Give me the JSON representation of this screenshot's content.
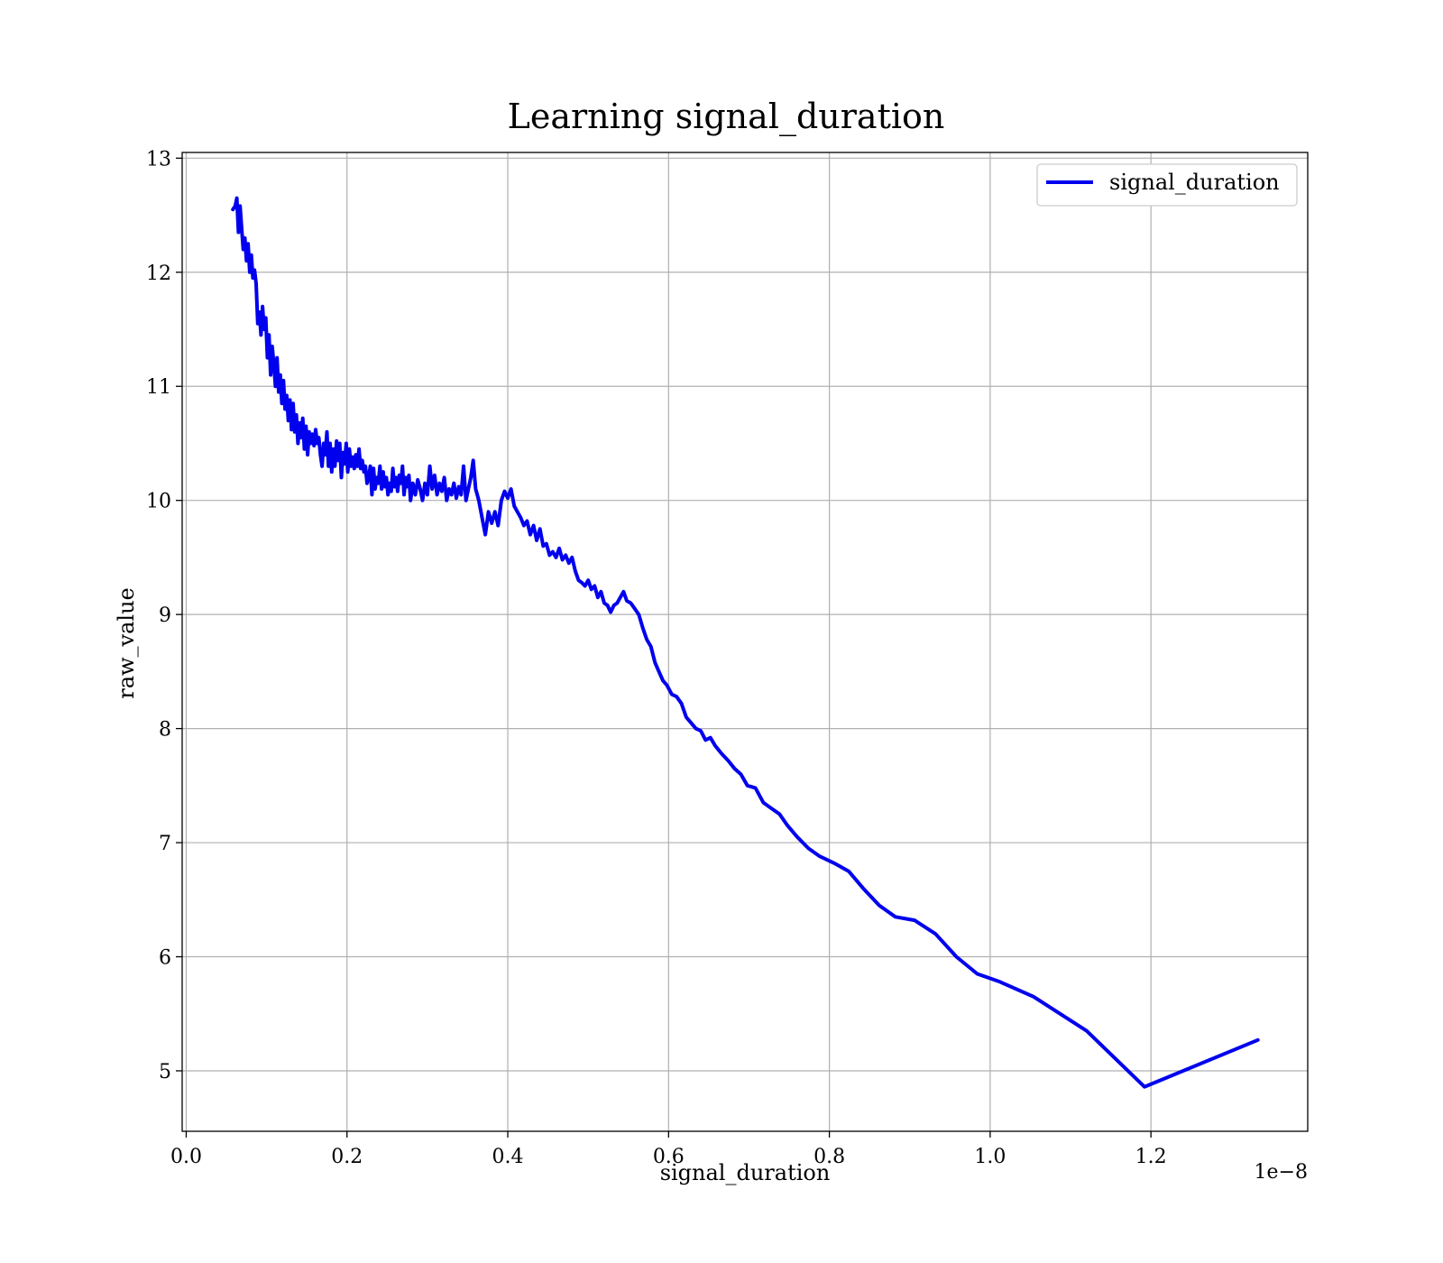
{
  "chart_data": {
    "type": "line",
    "title": "Learning signal_duration",
    "xlabel": "signal_duration",
    "ylabel": "raw_value",
    "x_offset_label": "1e−8",
    "xlim": [
      -0.005,
      1.395
    ],
    "ylim": [
      4.47,
      13.05
    ],
    "x_ticks": [
      0.0,
      0.2,
      0.4,
      0.6,
      0.8,
      1.0,
      1.2
    ],
    "x_tick_labels": [
      "0.0",
      "0.2",
      "0.4",
      "0.6",
      "0.8",
      "1.0",
      "1.2"
    ],
    "y_ticks": [
      5,
      6,
      7,
      8,
      9,
      10,
      11,
      12,
      13
    ],
    "y_tick_labels": [
      "5",
      "6",
      "7",
      "8",
      "9",
      "10",
      "11",
      "12",
      "13"
    ],
    "grid": true,
    "legend_position": "top-right",
    "series": [
      {
        "name": "signal_duration",
        "color": "#0000ee",
        "x": [
          0.058,
          0.061,
          0.063,
          0.065,
          0.067,
          0.069,
          0.071,
          0.073,
          0.075,
          0.077,
          0.079,
          0.081,
          0.083,
          0.085,
          0.087,
          0.089,
          0.091,
          0.093,
          0.095,
          0.097,
          0.099,
          0.101,
          0.103,
          0.105,
          0.107,
          0.109,
          0.111,
          0.113,
          0.115,
          0.117,
          0.119,
          0.121,
          0.123,
          0.125,
          0.127,
          0.129,
          0.131,
          0.133,
          0.135,
          0.137,
          0.139,
          0.141,
          0.143,
          0.145,
          0.147,
          0.149,
          0.151,
          0.153,
          0.155,
          0.157,
          0.159,
          0.161,
          0.163,
          0.165,
          0.167,
          0.169,
          0.171,
          0.173,
          0.175,
          0.177,
          0.179,
          0.181,
          0.183,
          0.185,
          0.187,
          0.189,
          0.191,
          0.193,
          0.195,
          0.197,
          0.199,
          0.201,
          0.203,
          0.205,
          0.207,
          0.209,
          0.211,
          0.213,
          0.215,
          0.217,
          0.219,
          0.221,
          0.223,
          0.225,
          0.227,
          0.229,
          0.231,
          0.233,
          0.235,
          0.237,
          0.239,
          0.241,
          0.243,
          0.245,
          0.247,
          0.249,
          0.251,
          0.253,
          0.255,
          0.257,
          0.259,
          0.261,
          0.263,
          0.265,
          0.267,
          0.269,
          0.271,
          0.273,
          0.275,
          0.277,
          0.279,
          0.282,
          0.285,
          0.288,
          0.291,
          0.294,
          0.297,
          0.3,
          0.303,
          0.306,
          0.309,
          0.312,
          0.315,
          0.318,
          0.321,
          0.324,
          0.327,
          0.33,
          0.333,
          0.336,
          0.339,
          0.342,
          0.345,
          0.348,
          0.351,
          0.354,
          0.357,
          0.36,
          0.364,
          0.368,
          0.372,
          0.376,
          0.38,
          0.384,
          0.388,
          0.392,
          0.396,
          0.4,
          0.404,
          0.408,
          0.412,
          0.416,
          0.42,
          0.424,
          0.428,
          0.432,
          0.436,
          0.44,
          0.444,
          0.448,
          0.452,
          0.456,
          0.46,
          0.464,
          0.468,
          0.472,
          0.476,
          0.48,
          0.484,
          0.488,
          0.492,
          0.496,
          0.5,
          0.504,
          0.508,
          0.512,
          0.516,
          0.52,
          0.524,
          0.528,
          0.532,
          0.536,
          0.54,
          0.544,
          0.548,
          0.553,
          0.558,
          0.563,
          0.568,
          0.573,
          0.578,
          0.583,
          0.588,
          0.593,
          0.598,
          0.604,
          0.61,
          0.616,
          0.622,
          0.628,
          0.634,
          0.64,
          0.646,
          0.652,
          0.658,
          0.666,
          0.674,
          0.682,
          0.69,
          0.698,
          0.708,
          0.718,
          0.728,
          0.738,
          0.748,
          0.76,
          0.774,
          0.788,
          0.806,
          0.824,
          0.842,
          0.862,
          0.882,
          0.906,
          0.932,
          0.958,
          0.984,
          1.012,
          1.054,
          1.12,
          1.192,
          1.333
        ],
        "y": [
          12.55,
          12.58,
          12.65,
          12.35,
          12.58,
          12.38,
          12.2,
          12.3,
          12.1,
          12.25,
          12.0,
          12.15,
          11.95,
          12.02,
          11.9,
          11.55,
          11.65,
          11.45,
          11.7,
          11.5,
          11.6,
          11.25,
          11.45,
          11.1,
          11.35,
          11.2,
          11.0,
          11.25,
          10.95,
          11.1,
          10.85,
          11.05,
          10.8,
          10.92,
          10.7,
          10.88,
          10.62,
          10.85,
          10.6,
          10.75,
          10.5,
          10.68,
          10.55,
          10.72,
          10.45,
          10.65,
          10.4,
          10.6,
          10.5,
          10.58,
          10.48,
          10.62,
          10.5,
          10.55,
          10.4,
          10.3,
          10.5,
          10.4,
          10.6,
          10.3,
          10.5,
          10.25,
          10.45,
          10.3,
          10.52,
          10.35,
          10.5,
          10.2,
          10.42,
          10.32,
          10.5,
          10.25,
          10.45,
          10.3,
          10.38,
          10.28,
          10.4,
          10.3,
          10.45,
          10.28,
          10.35,
          10.25,
          10.3,
          10.15,
          10.2,
          10.3,
          10.05,
          10.28,
          10.1,
          10.2,
          10.15,
          10.3,
          10.1,
          10.25,
          10.12,
          10.2,
          10.05,
          10.15,
          10.08,
          10.28,
          10.12,
          10.2,
          10.08,
          10.22,
          10.15,
          10.3,
          10.05,
          10.2,
          10.12,
          10.22,
          10.0,
          10.15,
          10.05,
          10.18,
          10.1,
          10.0,
          10.15,
          10.05,
          10.3,
          10.1,
          10.22,
          10.05,
          10.15,
          10.08,
          10.2,
          10.0,
          10.1,
          10.05,
          10.15,
          10.02,
          10.12,
          10.05,
          10.3,
          10.0,
          10.1,
          10.2,
          10.35,
          10.1,
          10.0,
          9.85,
          9.7,
          9.9,
          9.8,
          9.9,
          9.78,
          10.0,
          10.08,
          10.02,
          10.1,
          9.95,
          9.9,
          9.85,
          9.78,
          9.82,
          9.7,
          9.78,
          9.65,
          9.75,
          9.6,
          9.62,
          9.52,
          9.55,
          9.5,
          9.58,
          9.48,
          9.52,
          9.45,
          9.5,
          9.38,
          9.3,
          9.28,
          9.25,
          9.3,
          9.22,
          9.25,
          9.15,
          9.2,
          9.1,
          9.08,
          9.02,
          9.08,
          9.1,
          9.15,
          9.2,
          9.12,
          9.1,
          9.05,
          9.0,
          8.88,
          8.78,
          8.72,
          8.58,
          8.5,
          8.42,
          8.38,
          8.3,
          8.28,
          8.22,
          8.1,
          8.05,
          8.0,
          7.98,
          7.9,
          7.92,
          7.85,
          7.78,
          7.72,
          7.65,
          7.6,
          7.5,
          7.48,
          7.35,
          7.3,
          7.25,
          7.15,
          7.05,
          6.95,
          6.88,
          6.82,
          6.75,
          6.6,
          6.45,
          6.35,
          6.32,
          6.2,
          6.0,
          5.85,
          5.78,
          5.65,
          5.35,
          4.86,
          5.27
        ]
      }
    ]
  }
}
